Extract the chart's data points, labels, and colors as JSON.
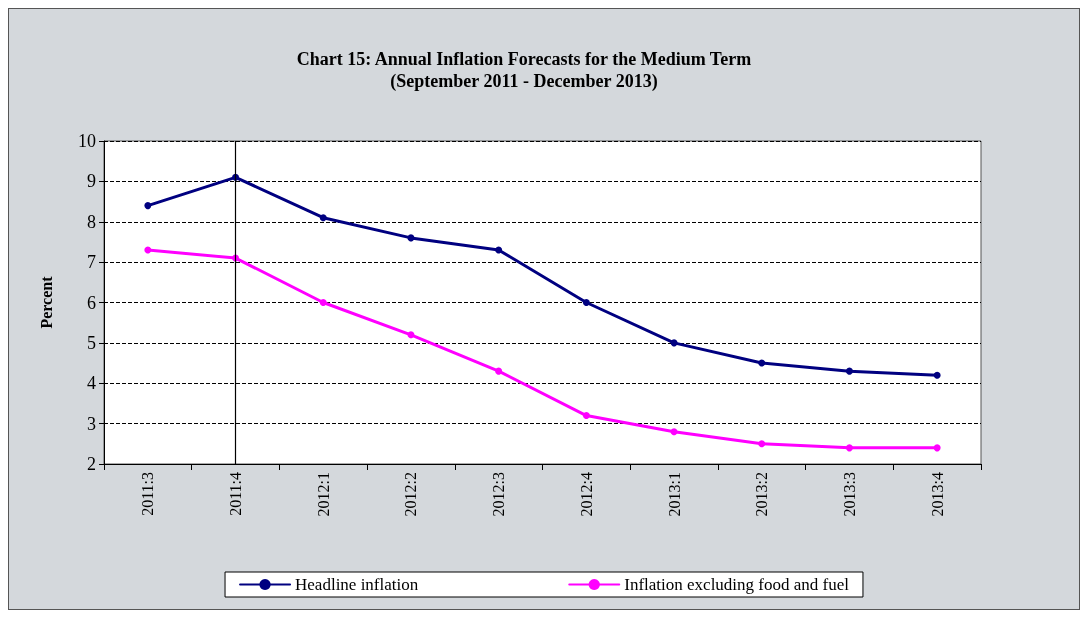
{
  "chart_data": {
    "type": "line",
    "title": "Chart 15: Annual Inflation Forecasts for the Medium Term",
    "subtitle": "(September 2011 - December 2013)",
    "ylabel": "Percent",
    "categories": [
      "2011:3",
      "2011:4",
      "2012:1",
      "2012:2",
      "2012:3",
      "2012:4",
      "2013:1",
      "2013:2",
      "2013:3",
      "2013:4"
    ],
    "series": [
      {
        "name": "Headline inflation",
        "color": "#000080",
        "values": [
          8.4,
          9.1,
          8.1,
          7.6,
          7.3,
          6.0,
          5.0,
          4.5,
          4.3,
          4.2
        ]
      },
      {
        "name": "Inflation excluding food and fuel",
        "color": "#ff00ff",
        "values": [
          7.3,
          7.1,
          6.0,
          5.2,
          4.3,
          3.2,
          2.8,
          2.5,
          2.4,
          2.4
        ]
      }
    ],
    "ylim": [
      2,
      10
    ],
    "yticks": [
      2,
      3,
      4,
      5,
      6,
      7,
      8,
      9,
      10
    ],
    "grid": "y",
    "legend": "bottom",
    "marker": "circle",
    "line_style": "solid",
    "ref_lines": [
      {
        "axis": "x",
        "value": "2011:4",
        "color": "#000000"
      }
    ]
  }
}
